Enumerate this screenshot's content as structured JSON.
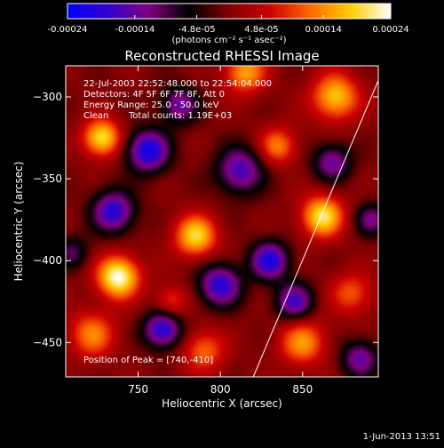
{
  "colorbar": {
    "tick_labels": [
      "-0.00024",
      "-0.00014",
      "-4.8e-05",
      "4.8e-05",
      "0.00014",
      "0.00024"
    ],
    "tick_values": [
      -0.00024,
      -0.00014,
      -4.8e-05,
      4.8e-05,
      0.00014,
      0.00024
    ],
    "range": [
      -0.00024,
      0.00024
    ],
    "unit_label": "(photons cm⁻² s⁻¹ asec⁻²)",
    "colors": [
      "#0000ff",
      "#3300cc",
      "#800080",
      "#000000",
      "#800000",
      "#cc0000",
      "#ff6600",
      "#ffcc00",
      "#ffffff"
    ]
  },
  "info": {
    "time_range": "22-Jul-2003 22:52:48.000 to 22:54:04.000",
    "detectors": "Detectors: 4F 5F 6F 7F 8F, Att 0",
    "energy_range": "Energy Range: 25.0 - 50.0 keV",
    "clean": "Clean",
    "total_counts": "Total counts: 1.19E+03",
    "peak": "Position of Peak = [740,-410]"
  },
  "footer": {
    "date": "1-Jun-2013 13:51"
  },
  "chart_data": {
    "type": "heatmap",
    "title": "Reconstructed RHESSI Image",
    "xlabel": "Heliocentric X (arcsec)",
    "ylabel": "Heliocentric Y (arcsec)",
    "xlim": [
      706,
      896
    ],
    "ylim": [
      -471,
      -281
    ],
    "x_ticks": [
      750,
      800,
      850
    ],
    "x_tick_labels": [
      "750",
      "800",
      "850"
    ],
    "y_ticks": [
      -300,
      -350,
      -400,
      -450
    ],
    "y_tick_labels": [
      "−300",
      "−350",
      "−400",
      "−450"
    ],
    "limb_line": [
      [
        820,
        -471
      ],
      [
        896,
        -290
      ]
    ],
    "blobs": [
      {
        "x": 738,
        "y": -410,
        "a": 1.0,
        "s": 9
      },
      {
        "x": 728,
        "y": -325,
        "a": 0.85,
        "s": 8
      },
      {
        "x": 785,
        "y": -385,
        "a": 0.8,
        "s": 9
      },
      {
        "x": 862,
        "y": -373,
        "a": 0.85,
        "s": 9
      },
      {
        "x": 870,
        "y": -300,
        "a": 0.75,
        "s": 10
      },
      {
        "x": 815,
        "y": -285,
        "a": 0.65,
        "s": 9
      },
      {
        "x": 850,
        "y": -450,
        "a": 0.6,
        "s": 10
      },
      {
        "x": 722,
        "y": -445,
        "a": 0.55,
        "s": 10
      },
      {
        "x": 790,
        "y": -455,
        "a": 0.5,
        "s": 9
      },
      {
        "x": 835,
        "y": -330,
        "a": 0.55,
        "s": 8
      },
      {
        "x": 880,
        "y": -420,
        "a": 0.45,
        "s": 9
      },
      {
        "x": 770,
        "y": -425,
        "a": 0.4,
        "s": 7
      },
      {
        "x": 756,
        "y": -333,
        "a": -0.9,
        "s": 9
      },
      {
        "x": 735,
        "y": -370,
        "a": -0.8,
        "s": 9
      },
      {
        "x": 765,
        "y": -442,
        "a": -0.85,
        "s": 8
      },
      {
        "x": 812,
        "y": -345,
        "a": -0.7,
        "s": 10
      },
      {
        "x": 800,
        "y": -415,
        "a": -0.8,
        "s": 9
      },
      {
        "x": 830,
        "y": -400,
        "a": -0.85,
        "s": 8
      },
      {
        "x": 868,
        "y": -340,
        "a": -0.6,
        "s": 8
      },
      {
        "x": 845,
        "y": -425,
        "a": -0.7,
        "s": 8
      },
      {
        "x": 885,
        "y": -460,
        "a": -0.6,
        "s": 8
      },
      {
        "x": 775,
        "y": -305,
        "a": -0.6,
        "s": 8
      },
      {
        "x": 892,
        "y": -375,
        "a": -0.5,
        "s": 7
      },
      {
        "x": 710,
        "y": -395,
        "a": -0.4,
        "s": 7
      }
    ]
  }
}
